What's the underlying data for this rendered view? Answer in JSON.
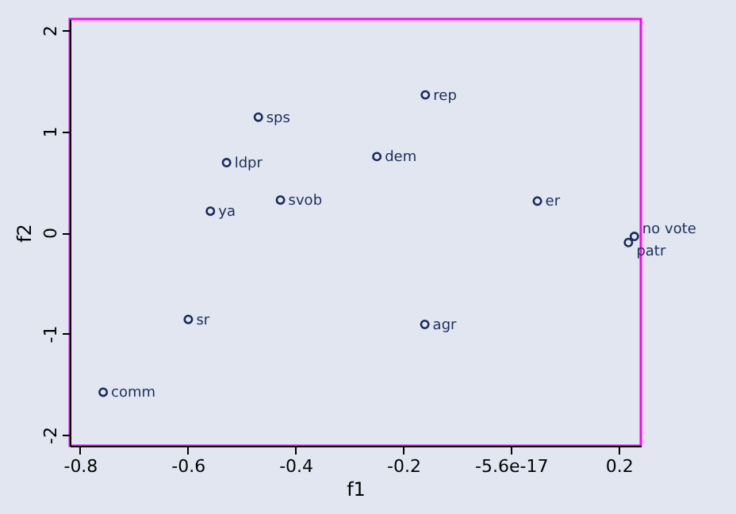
{
  "chart_data": {
    "type": "scatter",
    "xlabel": "f1",
    "ylabel": "f2",
    "x": [
      -0.159,
      -0.469,
      -0.528,
      -0.249,
      -0.428,
      -0.558,
      0.049,
      0.229,
      0.218,
      -0.599,
      -0.16,
      -0.757
    ],
    "series": [
      {
        "color": "#1a2a5a",
        "values": [
          1.36,
          1.14,
          0.69,
          0.75,
          0.32,
          0.21,
          0.31,
          -0.04,
          -0.1,
          -0.86,
          -0.91,
          -1.58
        ]
      }
    ],
    "annotations": [
      {
        "text": "rep",
        "x": -0.159,
        "y": 1.36
      },
      {
        "text": "sps",
        "x": -0.469,
        "y": 1.14
      },
      {
        "text": "ldpr",
        "x": -0.528,
        "y": 0.69
      },
      {
        "text": "dem",
        "x": -0.249,
        "y": 0.75
      },
      {
        "text": "svob",
        "x": -0.428,
        "y": 0.32
      },
      {
        "text": "ya",
        "x": -0.558,
        "y": 0.21
      },
      {
        "text": "er",
        "x": 0.049,
        "y": 0.31
      },
      {
        "text": "no vote",
        "x": 0.229,
        "y": -0.04
      },
      {
        "text": "patr",
        "x": 0.218,
        "y": -0.1
      },
      {
        "text": "sr",
        "x": -0.599,
        "y": -0.86
      },
      {
        "text": "agr",
        "x": -0.16,
        "y": -0.91
      },
      {
        "text": "comm",
        "x": -0.757,
        "y": -1.58
      }
    ],
    "xlim": [
      -0.819,
      0.241
    ],
    "xticks": [
      -0.8,
      -0.6,
      -0.4,
      -0.2,
      {
        "value": 0,
        "label": "-5.6e-17"
      },
      0.2
    ],
    "ylim": [
      -2.11,
      2.11
    ],
    "yticks": [
      -2,
      -1,
      0,
      1,
      2
    ],
    "marker": "circle",
    "grid": false
  }
}
